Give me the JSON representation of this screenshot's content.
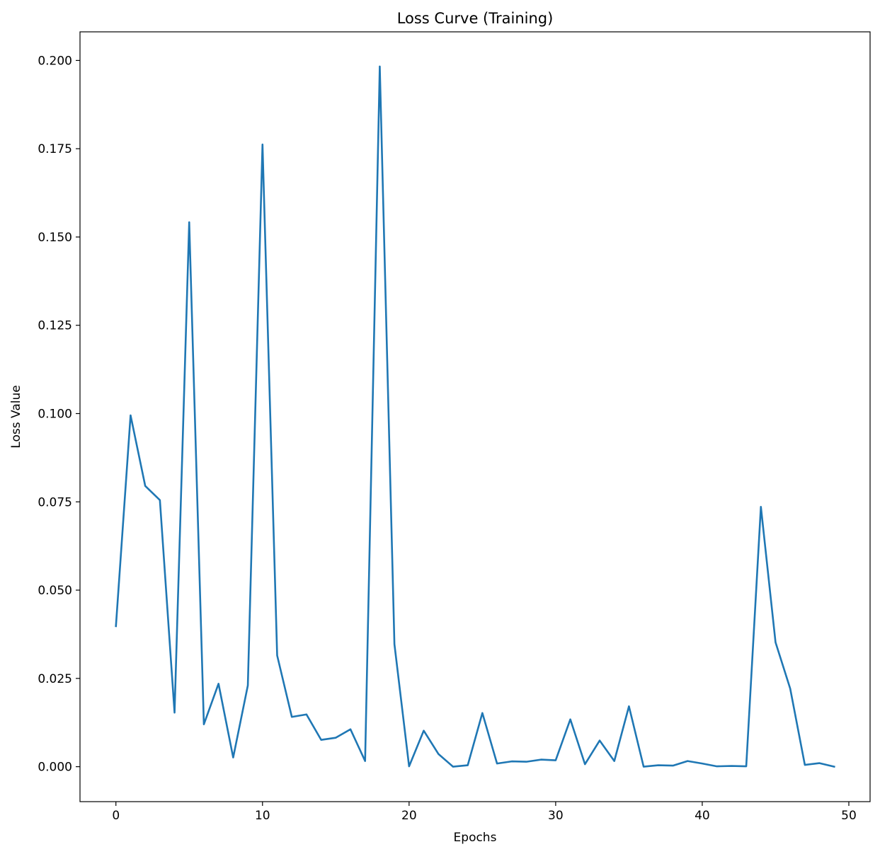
{
  "chart_data": {
    "type": "line",
    "title": "Loss Curve (Training)",
    "xlabel": "Epochs",
    "ylabel": "Loss Value",
    "xlim": [
      -2.45,
      51.45
    ],
    "ylim": [
      -0.0099,
      0.2081
    ],
    "xticks": [
      0,
      10,
      20,
      30,
      40,
      50
    ],
    "xtick_labels": [
      "0",
      "10",
      "20",
      "30",
      "40",
      "50"
    ],
    "yticks": [
      0.0,
      0.025,
      0.05,
      0.075,
      0.1,
      0.125,
      0.15,
      0.175,
      0.2
    ],
    "ytick_labels": [
      "0.000",
      "0.025",
      "0.050",
      "0.075",
      "0.100",
      "0.125",
      "0.150",
      "0.175",
      "0.200"
    ],
    "grid": false,
    "line_color": "#1f77b4",
    "series": [
      {
        "x": [
          0,
          1,
          2,
          3,
          4,
          5,
          6,
          7,
          8,
          9,
          10,
          11,
          12,
          13,
          14,
          15,
          16,
          17,
          18,
          19,
          20,
          21,
          22,
          23,
          24,
          25,
          26,
          27,
          28,
          29,
          30,
          31,
          32,
          33,
          34,
          35,
          36,
          37,
          38,
          39,
          40,
          41,
          42,
          43,
          44,
          45,
          46,
          47,
          48,
          49
        ],
        "values": [
          0.0398,
          0.0995,
          0.0795,
          0.0755,
          0.0153,
          0.1542,
          0.012,
          0.0235,
          0.0026,
          0.023,
          0.1762,
          0.0315,
          0.0141,
          0.0148,
          0.0076,
          0.0082,
          0.0106,
          0.0016,
          0.1983,
          0.0347,
          0.0001,
          0.0102,
          0.0036,
          0.0,
          0.0004,
          0.0152,
          0.0009,
          0.0015,
          0.0014,
          0.002,
          0.0018,
          0.0134,
          0.0007,
          0.0074,
          0.0016,
          0.0171,
          0.0,
          0.0004,
          0.0003,
          0.0016,
          0.0009,
          0.0001,
          0.0002,
          0.0001,
          0.0736,
          0.0352,
          0.0221,
          0.0005,
          0.001,
          0.0
        ]
      }
    ]
  }
}
